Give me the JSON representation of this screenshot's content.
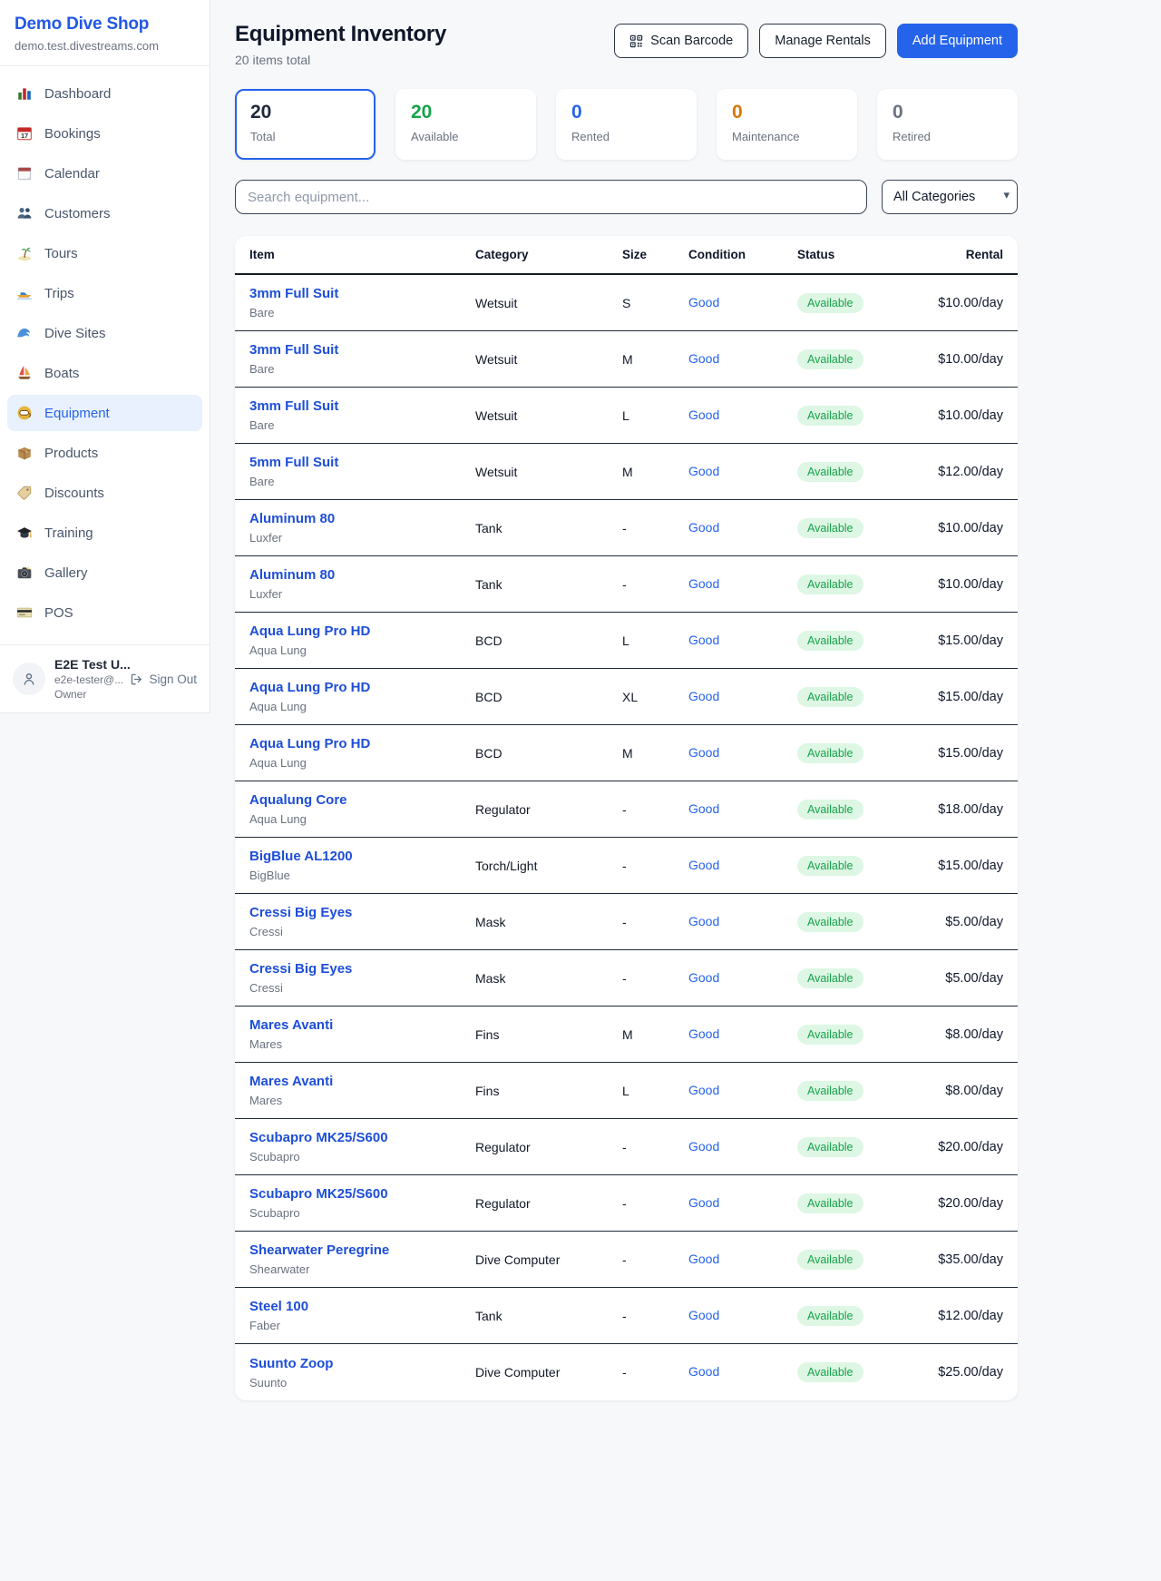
{
  "sidebar": {
    "brand": {
      "name": "Demo Dive Shop",
      "domain": "demo.test.divestreams.com"
    },
    "items": [
      {
        "icon": "bar-chart-icon",
        "label": "Dashboard",
        "active": false
      },
      {
        "icon": "calendar-date-icon",
        "label": "Bookings",
        "active": false
      },
      {
        "icon": "calendar-pad-icon",
        "label": "Calendar",
        "active": false
      },
      {
        "icon": "people-icon",
        "label": "Customers",
        "active": false
      },
      {
        "icon": "palm-island-icon",
        "label": "Tours",
        "active": false
      },
      {
        "icon": "speedboat-icon",
        "label": "Trips",
        "active": false
      },
      {
        "icon": "wave-icon",
        "label": "Dive Sites",
        "active": false
      },
      {
        "icon": "sailboat-icon",
        "label": "Boats",
        "active": false
      },
      {
        "icon": "dive-mask-icon",
        "label": "Equipment",
        "active": true
      },
      {
        "icon": "package-icon",
        "label": "Products",
        "active": false
      },
      {
        "icon": "tag-icon",
        "label": "Discounts",
        "active": false
      },
      {
        "icon": "graduation-cap-icon",
        "label": "Training",
        "active": false
      },
      {
        "icon": "camera-icon",
        "label": "Gallery",
        "active": false
      },
      {
        "icon": "credit-card-icon",
        "label": "POS",
        "active": false
      }
    ],
    "user": {
      "name": "E2E Test U...",
      "email": "e2e-tester@...",
      "role": "Owner",
      "sign_out_label": "Sign Out"
    }
  },
  "header": {
    "title": "Equipment Inventory",
    "subtitle": "20 items total",
    "scan_button": "Scan Barcode",
    "manage_button": "Manage Rentals",
    "add_button": "Add Equipment"
  },
  "stats": [
    {
      "value": "20",
      "label": "Total",
      "color": "#1e293b",
      "selected": true
    },
    {
      "value": "20",
      "label": "Available",
      "color": "#16a34a",
      "selected": false
    },
    {
      "value": "0",
      "label": "Rented",
      "color": "#2563eb",
      "selected": false
    },
    {
      "value": "0",
      "label": "Maintenance",
      "color": "#d97706",
      "selected": false
    },
    {
      "value": "0",
      "label": "Retired",
      "color": "#6b7280",
      "selected": false
    }
  ],
  "filters": {
    "search_placeholder": "Search equipment...",
    "category_selected": "All Categories"
  },
  "table": {
    "columns": [
      "Item",
      "Category",
      "Size",
      "Condition",
      "Status",
      "Rental"
    ],
    "rows": [
      {
        "name": "3mm Full Suit",
        "brand": "Bare",
        "category": "Wetsuit",
        "size": "S",
        "condition": "Good",
        "status": "Available",
        "rental": "$10.00/day"
      },
      {
        "name": "3mm Full Suit",
        "brand": "Bare",
        "category": "Wetsuit",
        "size": "M",
        "condition": "Good",
        "status": "Available",
        "rental": "$10.00/day"
      },
      {
        "name": "3mm Full Suit",
        "brand": "Bare",
        "category": "Wetsuit",
        "size": "L",
        "condition": "Good",
        "status": "Available",
        "rental": "$10.00/day"
      },
      {
        "name": "5mm Full Suit",
        "brand": "Bare",
        "category": "Wetsuit",
        "size": "M",
        "condition": "Good",
        "status": "Available",
        "rental": "$12.00/day"
      },
      {
        "name": "Aluminum 80",
        "brand": "Luxfer",
        "category": "Tank",
        "size": "-",
        "condition": "Good",
        "status": "Available",
        "rental": "$10.00/day"
      },
      {
        "name": "Aluminum 80",
        "brand": "Luxfer",
        "category": "Tank",
        "size": "-",
        "condition": "Good",
        "status": "Available",
        "rental": "$10.00/day"
      },
      {
        "name": "Aqua Lung Pro HD",
        "brand": "Aqua Lung",
        "category": "BCD",
        "size": "L",
        "condition": "Good",
        "status": "Available",
        "rental": "$15.00/day"
      },
      {
        "name": "Aqua Lung Pro HD",
        "brand": "Aqua Lung",
        "category": "BCD",
        "size": "XL",
        "condition": "Good",
        "status": "Available",
        "rental": "$15.00/day"
      },
      {
        "name": "Aqua Lung Pro HD",
        "brand": "Aqua Lung",
        "category": "BCD",
        "size": "M",
        "condition": "Good",
        "status": "Available",
        "rental": "$15.00/day"
      },
      {
        "name": "Aqualung Core",
        "brand": "Aqua Lung",
        "category": "Regulator",
        "size": "-",
        "condition": "Good",
        "status": "Available",
        "rental": "$18.00/day"
      },
      {
        "name": "BigBlue AL1200",
        "brand": "BigBlue",
        "category": "Torch/Light",
        "size": "-",
        "condition": "Good",
        "status": "Available",
        "rental": "$15.00/day"
      },
      {
        "name": "Cressi Big Eyes",
        "brand": "Cressi",
        "category": "Mask",
        "size": "-",
        "condition": "Good",
        "status": "Available",
        "rental": "$5.00/day"
      },
      {
        "name": "Cressi Big Eyes",
        "brand": "Cressi",
        "category": "Mask",
        "size": "-",
        "condition": "Good",
        "status": "Available",
        "rental": "$5.00/day"
      },
      {
        "name": "Mares Avanti",
        "brand": "Mares",
        "category": "Fins",
        "size": "M",
        "condition": "Good",
        "status": "Available",
        "rental": "$8.00/day"
      },
      {
        "name": "Mares Avanti",
        "brand": "Mares",
        "category": "Fins",
        "size": "L",
        "condition": "Good",
        "status": "Available",
        "rental": "$8.00/day"
      },
      {
        "name": "Scubapro MK25/S600",
        "brand": "Scubapro",
        "category": "Regulator",
        "size": "-",
        "condition": "Good",
        "status": "Available",
        "rental": "$20.00/day"
      },
      {
        "name": "Scubapro MK25/S600",
        "brand": "Scubapro",
        "category": "Regulator",
        "size": "-",
        "condition": "Good",
        "status": "Available",
        "rental": "$20.00/day"
      },
      {
        "name": "Shearwater Peregrine",
        "brand": "Shearwater",
        "category": "Dive Computer",
        "size": "-",
        "condition": "Good",
        "status": "Available",
        "rental": "$35.00/day"
      },
      {
        "name": "Steel 100",
        "brand": "Faber",
        "category": "Tank",
        "size": "-",
        "condition": "Good",
        "status": "Available",
        "rental": "$12.00/day"
      },
      {
        "name": "Suunto Zoop",
        "brand": "Suunto",
        "category": "Dive Computer",
        "size": "-",
        "condition": "Good",
        "status": "Available",
        "rental": "$25.00/day"
      }
    ]
  },
  "colors": {
    "accent_blue": "#2563eb",
    "link_blue": "#1d4ed8",
    "status_green": "#16a34a",
    "status_green_bg": "#dcfce7",
    "maintenance_orange": "#d97706"
  }
}
